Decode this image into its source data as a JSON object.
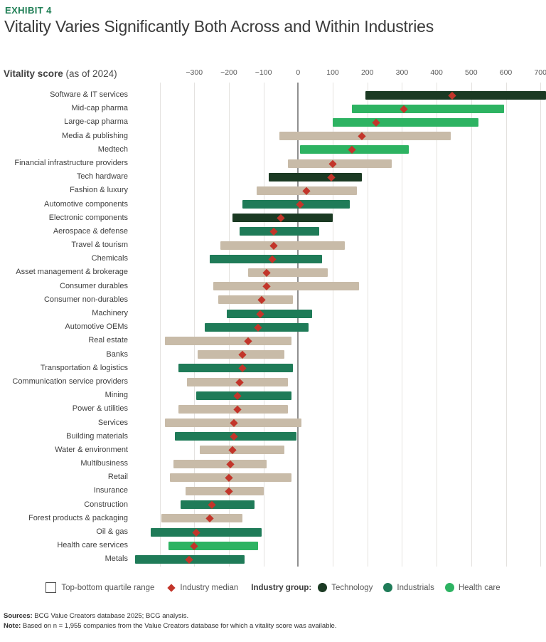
{
  "exhibit_label": "EXHIBIT 4",
  "title": "Vitality Varies Significantly Both Across and Within Industries",
  "axis_title": {
    "bold": "Vitality score",
    "rest": " (as of 2024)"
  },
  "colors": {
    "technology": "#1b3a23",
    "industrials": "#1f7b58",
    "healthcare": "#2db362",
    "other": "#c8bba8",
    "median": "#c2352a",
    "accent": "#1e7e54"
  },
  "chart_data": {
    "type": "bar",
    "orientation": "horizontal-range",
    "title": "Vitality Varies Significantly Both Across and Within Industries",
    "xlabel": "Vitality score (as of 2024)",
    "ylabel": "",
    "xlim": [
      -475,
      716
    ],
    "grid": true,
    "legend_position": "bottom",
    "ticks": [
      {
        "value": -400,
        "label": ""
      },
      {
        "value": -300,
        "label": "−300"
      },
      {
        "value": -200,
        "label": "−200"
      },
      {
        "value": -100,
        "label": "−100"
      },
      {
        "value": 0,
        "label": "0"
      },
      {
        "value": 100,
        "label": "100"
      },
      {
        "value": 200,
        "label": "200"
      },
      {
        "value": 300,
        "label": "300"
      },
      {
        "value": 400,
        "label": "400"
      },
      {
        "value": 500,
        "label": "500"
      },
      {
        "value": 600,
        "label": "600"
      },
      {
        "value": 700,
        "label": "700"
      }
    ],
    "rows": [
      {
        "label": "Software & IT services",
        "group": "technology",
        "low": 195,
        "high": 716,
        "median": 445
      },
      {
        "label": "Mid-cap pharma",
        "group": "healthcare",
        "low": 155,
        "high": 595,
        "median": 305
      },
      {
        "label": "Large-cap pharma",
        "group": "healthcare",
        "low": 100,
        "high": 520,
        "median": 225
      },
      {
        "label": "Media & publishing",
        "group": "other",
        "low": -55,
        "high": 440,
        "median": 185
      },
      {
        "label": "Medtech",
        "group": "healthcare",
        "low": 5,
        "high": 320,
        "median": 155
      },
      {
        "label": "Financial infrastructure providers",
        "group": "other",
        "low": -30,
        "high": 270,
        "median": 100
      },
      {
        "label": "Tech hardware",
        "group": "technology",
        "low": -85,
        "high": 185,
        "median": 95
      },
      {
        "label": "Fashion & luxury",
        "group": "other",
        "low": -120,
        "high": 170,
        "median": 25
      },
      {
        "label": "Automotive components",
        "group": "industrials",
        "low": -160,
        "high": 150,
        "median": 5
      },
      {
        "label": "Electronic components",
        "group": "technology",
        "low": -190,
        "high": 100,
        "median": -50
      },
      {
        "label": "Aerospace & defense",
        "group": "industrials",
        "low": -170,
        "high": 60,
        "median": -70
      },
      {
        "label": "Travel & tourism",
        "group": "other",
        "low": -225,
        "high": 135,
        "median": -70
      },
      {
        "label": "Chemicals",
        "group": "industrials",
        "low": -255,
        "high": 70,
        "median": -75
      },
      {
        "label": "Asset management & brokerage",
        "group": "other",
        "low": -145,
        "high": 85,
        "median": -90
      },
      {
        "label": "Consumer durables",
        "group": "other",
        "low": -245,
        "high": 175,
        "median": -90
      },
      {
        "label": "Consumer non-durables",
        "group": "other",
        "low": -230,
        "high": -15,
        "median": -105
      },
      {
        "label": "Machinery",
        "group": "industrials",
        "low": -205,
        "high": 40,
        "median": -110
      },
      {
        "label": "Automotive OEMs",
        "group": "industrials",
        "low": -270,
        "high": 30,
        "median": -115
      },
      {
        "label": "Real estate",
        "group": "other",
        "low": -385,
        "high": -20,
        "median": -145
      },
      {
        "label": "Banks",
        "group": "other",
        "low": -290,
        "high": -40,
        "median": -160
      },
      {
        "label": "Transportation & logistics",
        "group": "industrials",
        "low": -345,
        "high": -15,
        "median": -160
      },
      {
        "label": "Communication service providers",
        "group": "other",
        "low": -320,
        "high": -30,
        "median": -170
      },
      {
        "label": "Mining",
        "group": "industrials",
        "low": -295,
        "high": -20,
        "median": -175
      },
      {
        "label": "Power & utilities",
        "group": "other",
        "low": -345,
        "high": -30,
        "median": -175
      },
      {
        "label": "Services",
        "group": "other",
        "low": -385,
        "high": 10,
        "median": -185
      },
      {
        "label": "Building materials",
        "group": "industrials",
        "low": -355,
        "high": -5,
        "median": -185
      },
      {
        "label": "Water & environment",
        "group": "other",
        "low": -285,
        "high": -40,
        "median": -190
      },
      {
        "label": "Multibusiness",
        "group": "other",
        "low": -360,
        "high": -90,
        "median": -195
      },
      {
        "label": "Retail",
        "group": "other",
        "low": -370,
        "high": -20,
        "median": -200
      },
      {
        "label": "Insurance",
        "group": "other",
        "low": -325,
        "high": -100,
        "median": -200
      },
      {
        "label": "Construction",
        "group": "industrials",
        "low": -340,
        "high": -125,
        "median": -250
      },
      {
        "label": "Forest products & packaging",
        "group": "other",
        "low": -395,
        "high": -160,
        "median": -255
      },
      {
        "label": "Oil & gas",
        "group": "industrials",
        "low": -425,
        "high": -105,
        "median": -295
      },
      {
        "label": "Health care services",
        "group": "healthcare",
        "low": -375,
        "high": -115,
        "median": -300
      },
      {
        "label": "Metals",
        "group": "industrials",
        "low": -470,
        "high": -155,
        "median": -315
      }
    ]
  },
  "legend": {
    "quartile_label": "Top-bottom quartile range",
    "median_label": "Industry median",
    "group_title": "Industry group:",
    "groups": [
      {
        "key": "technology",
        "label": "Technology"
      },
      {
        "key": "industrials",
        "label": "Industrials"
      },
      {
        "key": "healthcare",
        "label": "Health care"
      }
    ]
  },
  "footer": {
    "sources_label": "Sources:",
    "sources_text": " BCG Value Creators database 2025; BCG analysis.",
    "note_label": "Note:",
    "note_text": " Based on n = 1,955 companies from the Value Creators database for which a vitality score was available."
  }
}
